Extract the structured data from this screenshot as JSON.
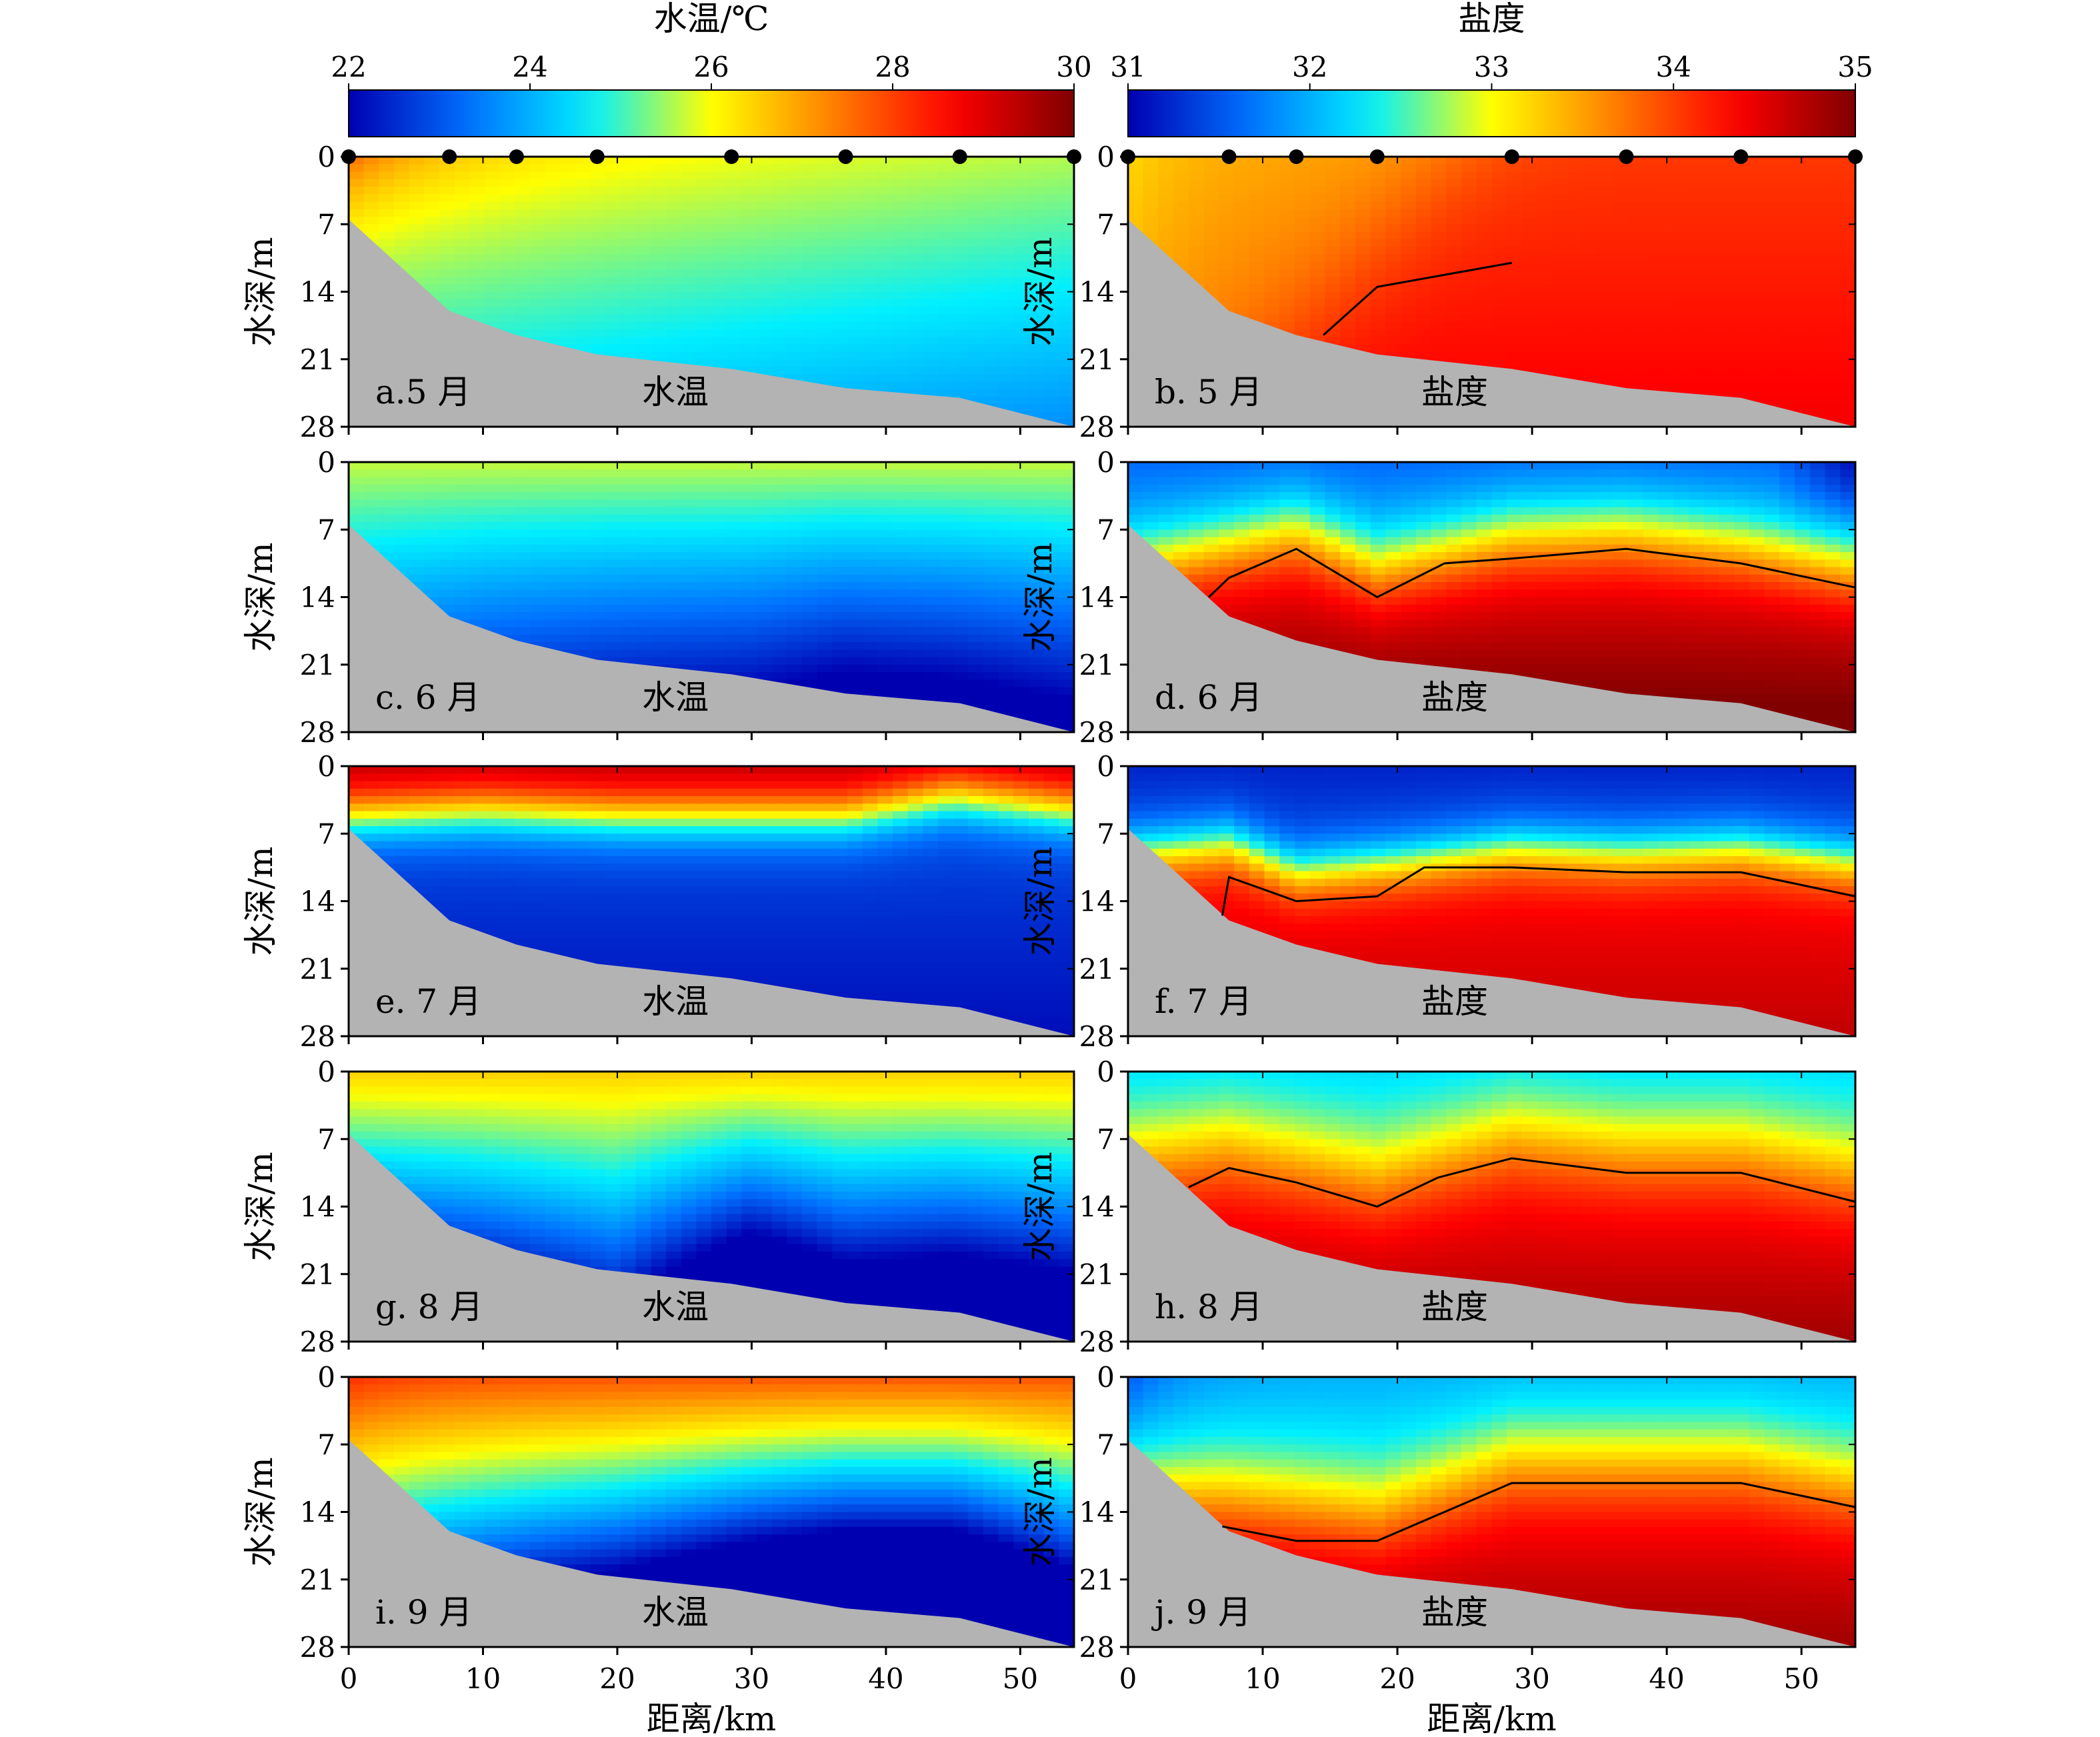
{
  "figure": {
    "colorbars": [
      {
        "title": "水温/℃",
        "ticks": [
          "22",
          "24",
          "26",
          "28",
          "30"
        ],
        "range": [
          22,
          30
        ]
      },
      {
        "title": "盐度",
        "ticks": [
          "31",
          "32",
          "33",
          "34",
          "35"
        ],
        "range": [
          31,
          35
        ]
      }
    ],
    "ylabel": "水深/m",
    "xlabel": "距离/km",
    "yticks": [
      "0",
      "7",
      "14",
      "21",
      "28"
    ],
    "xticks": [
      "0",
      "10",
      "20",
      "30",
      "40",
      "50"
    ],
    "legend_colors": [
      "#0000b0",
      "#0070ff",
      "#00f0ff",
      "#ffff00",
      "#ff8000",
      "#ff0000",
      "#800000"
    ],
    "land_color": "#b3b3b3"
  },
  "chart_data": {
    "type": "heatmap",
    "x_unit": "km",
    "y_unit": "m",
    "xlim": [
      0,
      54
    ],
    "ylim": [
      28,
      0
    ],
    "stations_km": [
      0,
      7.5,
      12.5,
      18.5,
      28.5,
      37,
      45.5,
      54
    ],
    "bottom_depth_m": [
      6.5,
      16,
      18.5,
      20.5,
      22,
      24,
      25,
      28
    ],
    "panels": [
      {
        "label": "a.5 月",
        "var": "水温",
        "col": 0,
        "row": 0,
        "month": 5,
        "contour_34": null
      },
      {
        "label": "b. 5 月",
        "var": "盐度",
        "col": 1,
        "row": 0,
        "month": 5,
        "contour_34": [
          [
            14.5,
            18.5
          ],
          [
            18.5,
            13.5
          ],
          [
            28.5,
            11
          ]
        ]
      },
      {
        "label": "c. 6 月",
        "var": "水温",
        "col": 0,
        "row": 1,
        "month": 6,
        "contour_34": null
      },
      {
        "label": "d. 6 月",
        "var": "盐度",
        "col": 1,
        "row": 1,
        "month": 6,
        "contour_34": [
          [
            6,
            14
          ],
          [
            7.5,
            12
          ],
          [
            12.5,
            9
          ],
          [
            18.5,
            14
          ],
          [
            23.5,
            10.5
          ],
          [
            28.5,
            10
          ],
          [
            37,
            9
          ],
          [
            45.5,
            10.5
          ],
          [
            54,
            13
          ]
        ]
      },
      {
        "label": "e. 7 月",
        "var": "水温",
        "col": 0,
        "row": 2,
        "month": 7,
        "contour_34": null
      },
      {
        "label": "f. 7 月",
        "var": "盐度",
        "col": 1,
        "row": 2,
        "month": 7,
        "contour_34": [
          [
            7,
            15.5
          ],
          [
            7.5,
            11.5
          ],
          [
            12.5,
            14
          ],
          [
            18.5,
            13.5
          ],
          [
            22,
            10.5
          ],
          [
            28.5,
            10.5
          ],
          [
            37,
            11
          ],
          [
            45.5,
            11
          ],
          [
            54,
            13.5
          ]
        ]
      },
      {
        "label": "g. 8 月",
        "var": "水温",
        "col": 0,
        "row": 3,
        "month": 8,
        "contour_34": null
      },
      {
        "label": "h. 8 月",
        "var": "盐度",
        "col": 1,
        "row": 3,
        "month": 8,
        "contour_34": [
          [
            4.5,
            12
          ],
          [
            7.5,
            10
          ],
          [
            12.5,
            11.5
          ],
          [
            18.5,
            14
          ],
          [
            23,
            11
          ],
          [
            28.5,
            9
          ],
          [
            37,
            10.5
          ],
          [
            45.5,
            10.5
          ],
          [
            54,
            13.5
          ]
        ]
      },
      {
        "label": "i. 9 月",
        "var": "水温",
        "col": 0,
        "row": 4,
        "month": 9,
        "contour_34": null
      },
      {
        "label": "j. 9 月",
        "var": "盐度",
        "col": 1,
        "row": 4,
        "month": 9,
        "contour_34": [
          [
            7,
            15.5
          ],
          [
            12.5,
            17
          ],
          [
            18.5,
            17
          ],
          [
            28.5,
            11
          ],
          [
            37,
            11
          ],
          [
            45.5,
            11
          ],
          [
            54,
            13.5
          ]
        ]
      }
    ]
  }
}
